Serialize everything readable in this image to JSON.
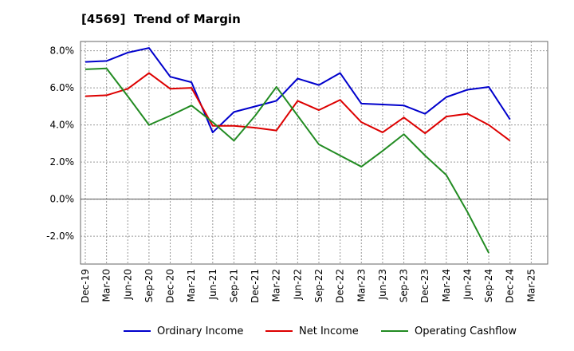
{
  "header": {
    "title": "[4569]  Trend of Margin"
  },
  "chart_data": {
    "type": "line",
    "title": "[4569]  Trend of Margin",
    "xlabel": "",
    "ylabel": "",
    "grid": true,
    "legend_position": "bottom",
    "ylim": [
      -3.5,
      8.5
    ],
    "yticks": [
      "8.0%",
      "6.0%",
      "4.0%",
      "2.0%",
      "0.0%",
      "-2.0%"
    ],
    "ytick_values": [
      8,
      6,
      4,
      2,
      0,
      -2
    ],
    "x_tick_labels": [
      "Dec-19",
      "Mar-20",
      "Jun-20",
      "Sep-20",
      "Dec-20",
      "Mar-21",
      "Jun-21",
      "Sep-21",
      "Dec-21",
      "Mar-22",
      "Jun-22",
      "Sep-22",
      "Dec-22",
      "Mar-23",
      "Jun-23",
      "Sep-23",
      "Dec-23",
      "Mar-24",
      "Jun-24",
      "Sep-24",
      "Dec-24",
      "Mar-25"
    ],
    "series": [
      {
        "name": "Ordinary Income",
        "color": "#0000cc",
        "values": [
          7.4,
          7.45,
          7.9,
          8.15,
          6.6,
          6.3,
          3.6,
          4.7,
          5.0,
          5.3,
          6.5,
          6.15,
          6.8,
          5.15,
          5.1,
          5.05,
          4.6,
          5.5,
          5.9,
          6.05,
          4.3,
          null
        ]
      },
      {
        "name": "Net Income",
        "color": "#dd0000",
        "values": [
          5.55,
          5.6,
          5.95,
          6.8,
          5.95,
          6.0,
          3.95,
          3.95,
          3.85,
          3.7,
          5.3,
          4.8,
          5.35,
          4.15,
          3.6,
          4.4,
          3.55,
          4.45,
          4.6,
          4.0,
          3.15,
          null
        ]
      },
      {
        "name": "Operating Cashflow",
        "color": "#228b22",
        "values": [
          7.0,
          7.05,
          5.55,
          4.0,
          4.5,
          5.05,
          4.15,
          3.15,
          4.5,
          6.05,
          4.5,
          2.95,
          2.35,
          1.75,
          2.6,
          3.5,
          2.35,
          1.3,
          -0.7,
          -2.9,
          null,
          null
        ]
      }
    ]
  }
}
